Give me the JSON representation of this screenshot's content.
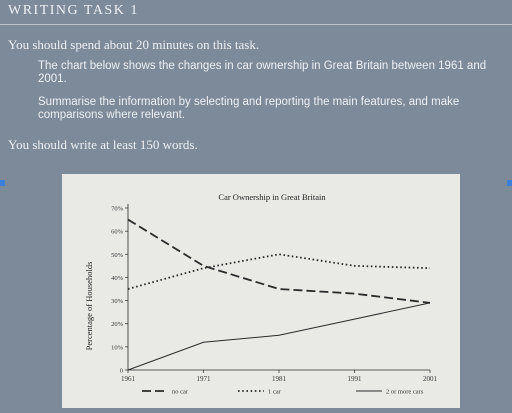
{
  "header": {
    "title": "WRITING TASK 1",
    "time_instruction": "You should spend about 20 minutes on this task."
  },
  "prompt": {
    "description": "The chart below shows the changes in car ownership in Great Britain between 1961 and 2001.",
    "instruction": "Summarise the information by selecting and reporting the main features, and make comparisons where relevant."
  },
  "word_instruction": "You should write at least 150 words.",
  "colors": {
    "background": "#7d8a9a",
    "chart_background": "#e9e9e6",
    "lines": "#2a2a2a"
  },
  "chart_data": {
    "type": "line",
    "title": "Car Ownership in Great Britain",
    "ylabel": "Percentage of Households",
    "xlabel": "",
    "x": [
      1961,
      1971,
      1981,
      1991,
      2001
    ],
    "x_tick_labels": [
      "1961",
      "1971",
      "1981",
      "1991",
      "2001"
    ],
    "ylim": [
      0,
      70
    ],
    "y_ticks": [
      0,
      10,
      20,
      30,
      40,
      50,
      60,
      70
    ],
    "y_tick_labels": [
      "0",
      "10%",
      "20%",
      "30%",
      "40%",
      "50%",
      "60%",
      "70%"
    ],
    "grid": false,
    "legend_position": "bottom",
    "series": [
      {
        "name": "no car",
        "style": "long-dash",
        "values": [
          65,
          45,
          35,
          33,
          29
        ]
      },
      {
        "name": "1 car",
        "style": "dotted",
        "values": [
          35,
          44,
          50,
          45,
          44
        ]
      },
      {
        "name": "2 or more cars",
        "style": "solid",
        "values": [
          0,
          12,
          15,
          22,
          29
        ]
      }
    ]
  }
}
